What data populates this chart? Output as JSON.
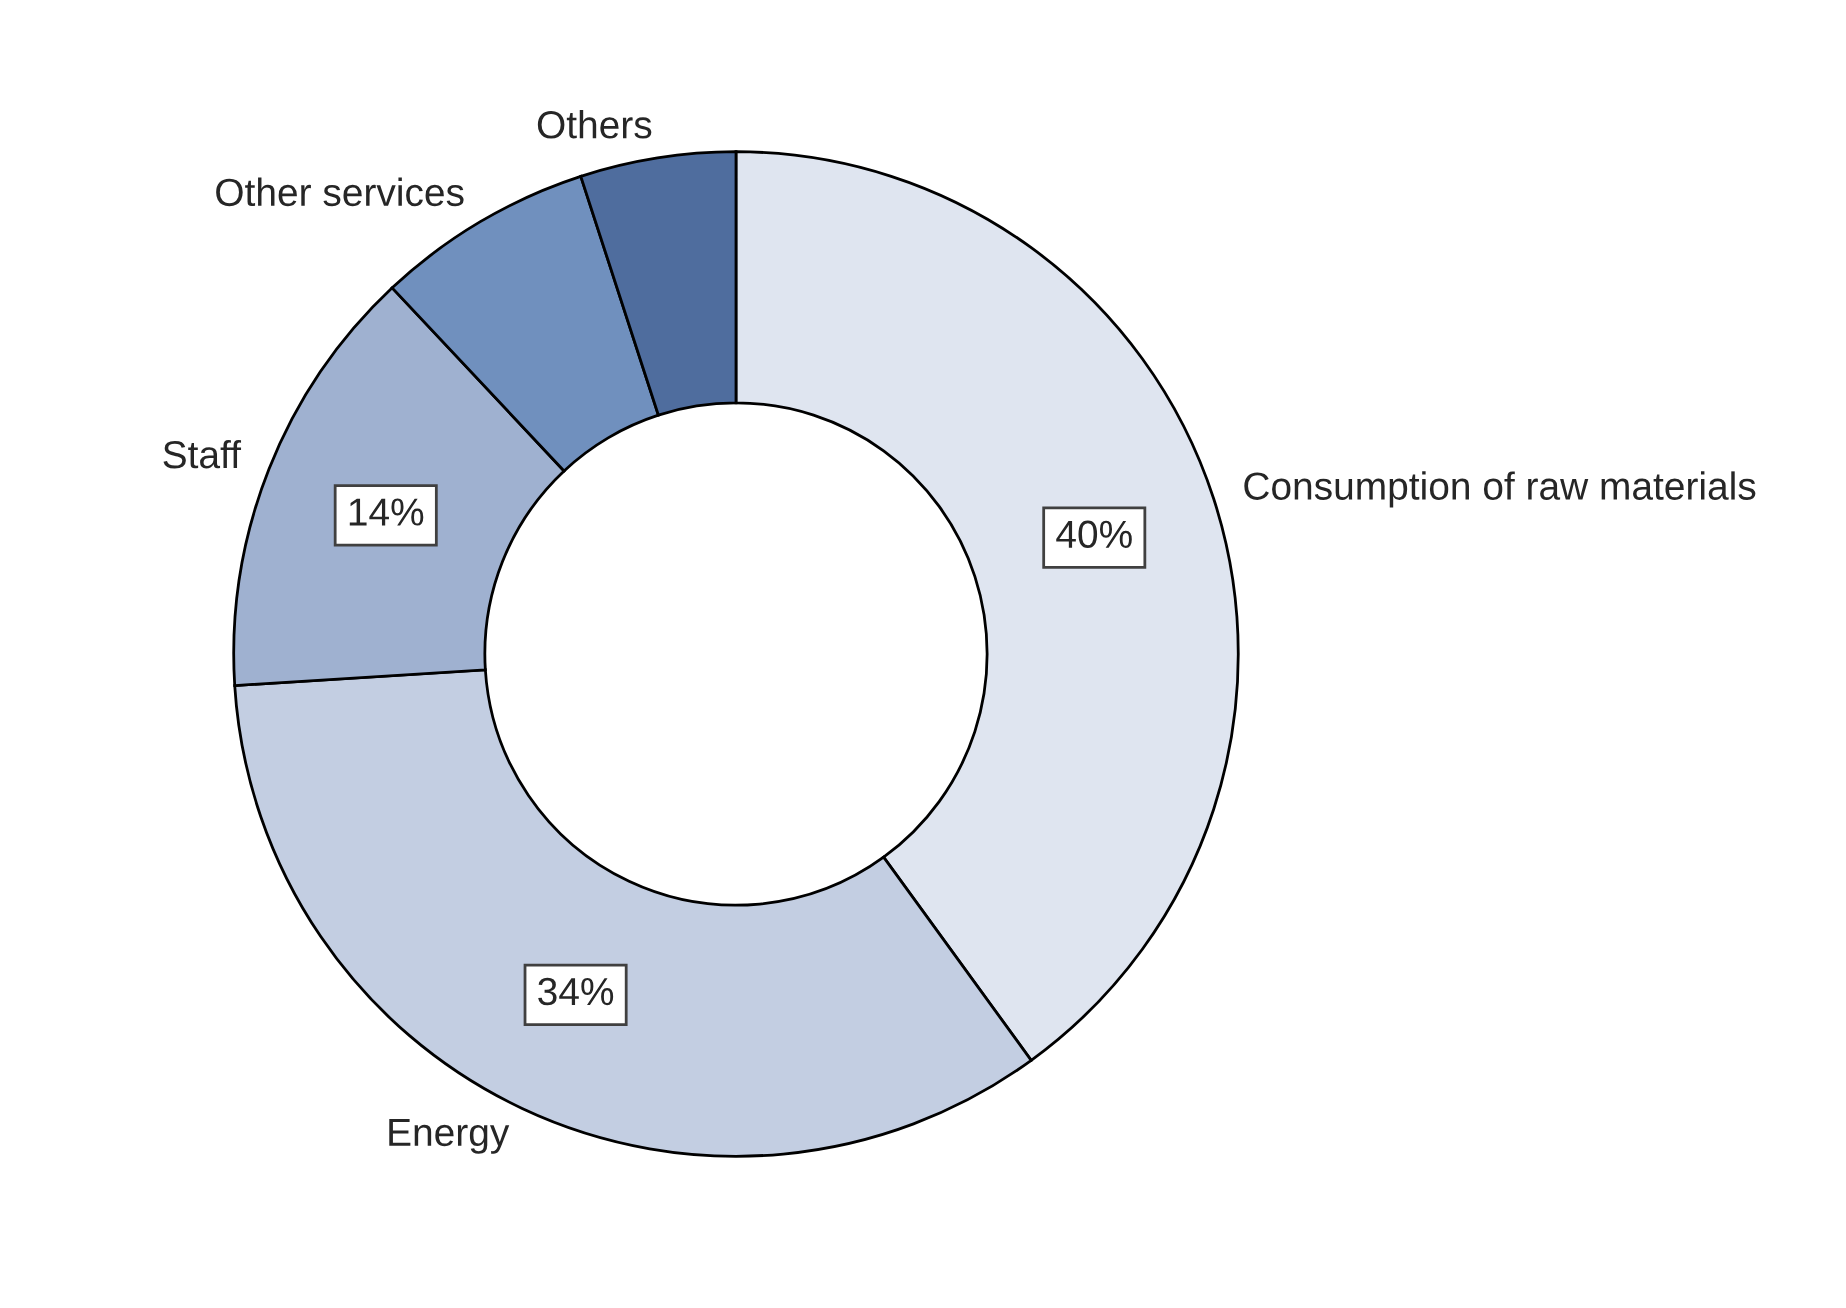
{
  "chart_data": {
    "type": "donut",
    "categories": [
      "Consumption of raw materials",
      "Energy",
      "Staff",
      "Other services",
      "Others"
    ],
    "values": [
      40,
      34,
      14,
      7,
      5
    ],
    "colors": [
      "#dfe5f0",
      "#c3cee2",
      "#9fb1d0",
      "#7090be",
      "#4f6d9e"
    ],
    "value_labels": [
      "40%",
      "34%",
      "14%",
      null,
      null
    ],
    "legend": false
  }
}
